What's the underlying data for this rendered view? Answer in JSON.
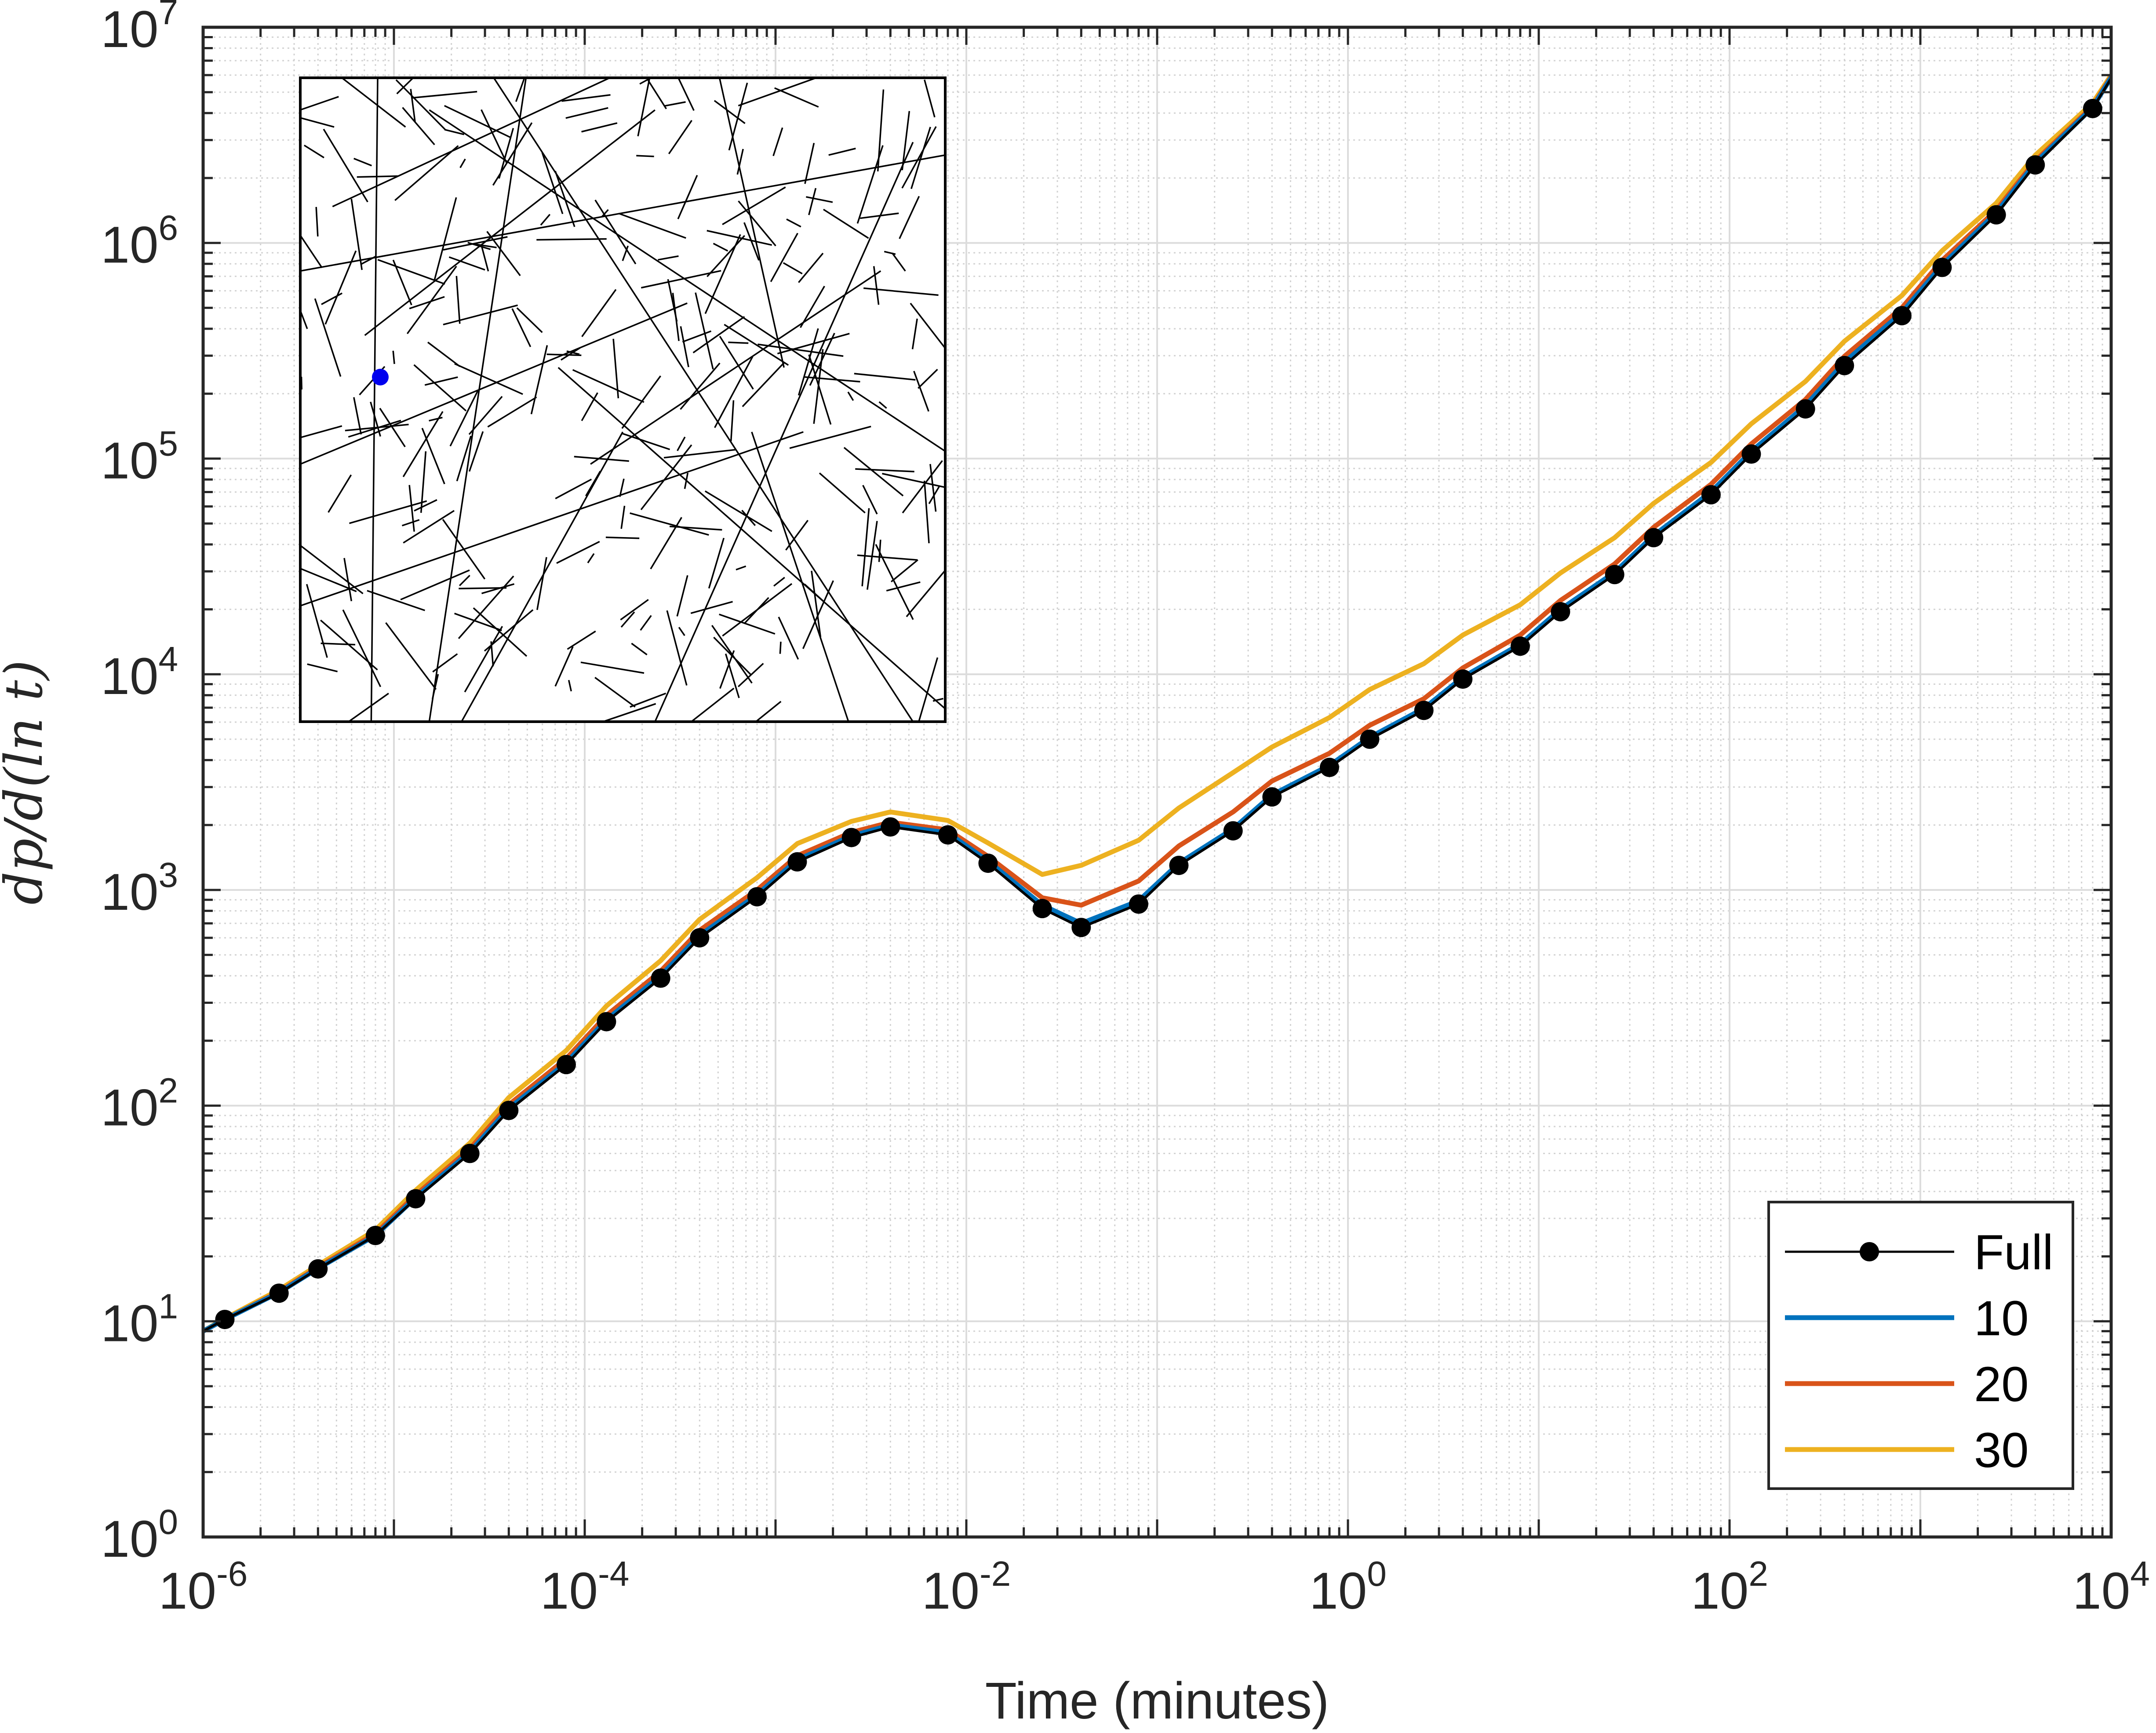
{
  "chart_data": {
    "type": "line",
    "xlabel": "Time (minutes)",
    "ylabel": "dp/d(ln t)",
    "x_scale": "log",
    "y_scale": "log",
    "xlim": [
      1e-06,
      10000.0
    ],
    "ylim": [
      1,
      10000000.0
    ],
    "grid": true,
    "minor_grid": true,
    "legend_position": "bottom-right",
    "x_ticks": [
      {
        "base": "10",
        "exp": "-6",
        "value": 1e-06
      },
      {
        "base": "10",
        "exp": "-4",
        "value": 0.0001
      },
      {
        "base": "10",
        "exp": "-2",
        "value": 0.01
      },
      {
        "base": "10",
        "exp": "0",
        "value": 1
      },
      {
        "base": "10",
        "exp": "2",
        "value": 100
      },
      {
        "base": "10",
        "exp": "4",
        "value": 10000.0
      }
    ],
    "y_ticks": [
      {
        "base": "10",
        "exp": "0",
        "value": 1
      },
      {
        "base": "10",
        "exp": "1",
        "value": 10
      },
      {
        "base": "10",
        "exp": "2",
        "value": 100
      },
      {
        "base": "10",
        "exp": "3",
        "value": 1000
      },
      {
        "base": "10",
        "exp": "4",
        "value": 10000
      },
      {
        "base": "10",
        "exp": "5",
        "value": 100000
      },
      {
        "base": "10",
        "exp": "6",
        "value": 1000000
      },
      {
        "base": "10",
        "exp": "7",
        "value": 10000000
      }
    ],
    "x": [
      1e-06,
      1.3e-06,
      2.5e-06,
      4e-06,
      8e-06,
      1.3e-05,
      2.5e-05,
      4e-05,
      8e-05,
      0.00013,
      0.00025,
      0.0004,
      0.0008,
      0.0013,
      0.0025,
      0.004,
      0.008,
      0.013,
      0.025,
      0.04,
      0.08,
      0.13,
      0.25,
      0.4,
      0.8,
      1.3,
      2.5,
      4,
      8,
      13,
      25,
      40,
      80,
      130,
      250,
      400,
      800,
      1300,
      2500,
      4000,
      8000,
      10000.0
    ],
    "series": [
      {
        "name": "Full",
        "color": "#000000",
        "marker": "circle",
        "values": [
          9,
          10.2,
          13.5,
          17.5,
          25,
          37,
          60,
          95,
          155,
          245,
          390,
          600,
          930,
          1350,
          1750,
          1960,
          1800,
          1330,
          820,
          670,
          860,
          1300,
          1880,
          2700,
          3700,
          5000,
          6800,
          9500,
          13500,
          19500,
          29000,
          43000,
          68000,
          105000,
          170000,
          270000,
          460000,
          770000,
          1350000,
          2300000,
          4200000,
          5800000
        ]
      },
      {
        "name": "10",
        "color": "#0072BD",
        "values": [
          9,
          10.2,
          13.6,
          17.6,
          25,
          37.5,
          61,
          97,
          158,
          250,
          400,
          615,
          950,
          1380,
          1780,
          2000,
          1840,
          1360,
          850,
          700,
          890,
          1330,
          1920,
          2760,
          3780,
          5100,
          6950,
          9700,
          13800,
          20000,
          29700,
          44000,
          70000,
          108000,
          176000,
          280000,
          475000,
          790000,
          1380000,
          2350000,
          4250000,
          5850000
        ]
      },
      {
        "name": "20",
        "color": "#D95319",
        "values": [
          9,
          10.2,
          13.7,
          17.8,
          25.5,
          38.5,
          63,
          101,
          165,
          262,
          420,
          650,
          1000,
          1440,
          1850,
          2060,
          1900,
          1430,
          920,
          850,
          1100,
          1600,
          2300,
          3200,
          4300,
          5800,
          7700,
          10700,
          15200,
          22000,
          32500,
          48000,
          76000,
          117000,
          188000,
          298000,
          500000,
          830000,
          1420000,
          2400000,
          4300000,
          5900000
        ]
      },
      {
        "name": "30",
        "color": "#EDB120",
        "values": [
          9,
          10.3,
          14,
          18.2,
          26.5,
          40.5,
          67,
          109,
          180,
          290,
          470,
          730,
          1140,
          1640,
          2080,
          2300,
          2100,
          1650,
          1180,
          1300,
          1700,
          2400,
          3500,
          4600,
          6300,
          8500,
          11200,
          15200,
          21000,
          29500,
          43000,
          62000,
          96000,
          145000,
          228000,
          350000,
          570000,
          920000,
          1530000,
          2550000,
          4450000,
          6000000
        ]
      }
    ]
  },
  "inset": {
    "description_free": true
  }
}
